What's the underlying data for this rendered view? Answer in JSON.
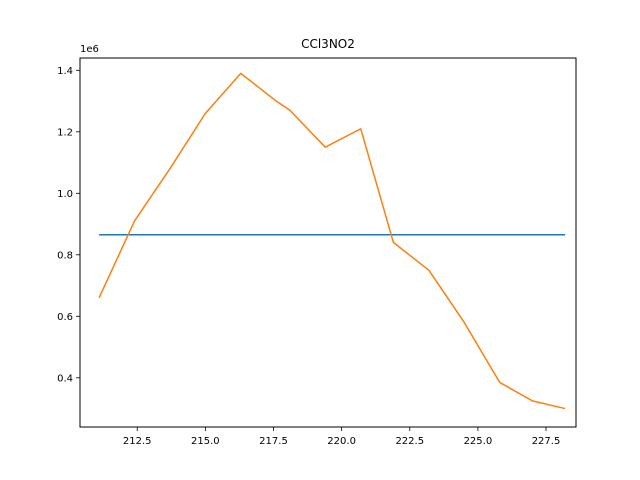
{
  "chart_data": {
    "type": "line",
    "title": "CCl3NO2",
    "xlabel": "",
    "ylabel": "",
    "y_offset_label": "1e6",
    "xlim": [
      210.4,
      228.6
    ],
    "ylim": [
      240000,
      1440000
    ],
    "x_ticks": [
      212.5,
      215.0,
      217.5,
      220.0,
      222.5,
      225.0,
      227.5
    ],
    "x_tick_labels": [
      "212.5",
      "215.0",
      "217.5",
      "220.0",
      "222.5",
      "225.0",
      "227.5"
    ],
    "y_ticks": [
      400000,
      600000,
      800000,
      1000000,
      1200000,
      1400000
    ],
    "y_tick_labels": [
      "0.4",
      "0.6",
      "0.8",
      "1.0",
      "1.2",
      "1.4"
    ],
    "grid": false,
    "series": [
      {
        "color": "#1f77b4",
        "x": [
          211.1,
          228.2
        ],
        "y": [
          865000,
          865000
        ]
      },
      {
        "color": "#ff7f0e",
        "x": [
          211.1,
          212.4,
          213.7,
          215.0,
          216.3,
          217.6,
          218.1,
          219.4,
          220.7,
          221.9,
          223.2,
          224.5,
          225.8,
          227.0,
          228.2
        ],
        "y": [
          660000,
          910000,
          1080000,
          1260000,
          1390000,
          1300000,
          1270000,
          1150000,
          1210000,
          840000,
          750000,
          580000,
          385000,
          325000,
          300000
        ]
      }
    ]
  }
}
